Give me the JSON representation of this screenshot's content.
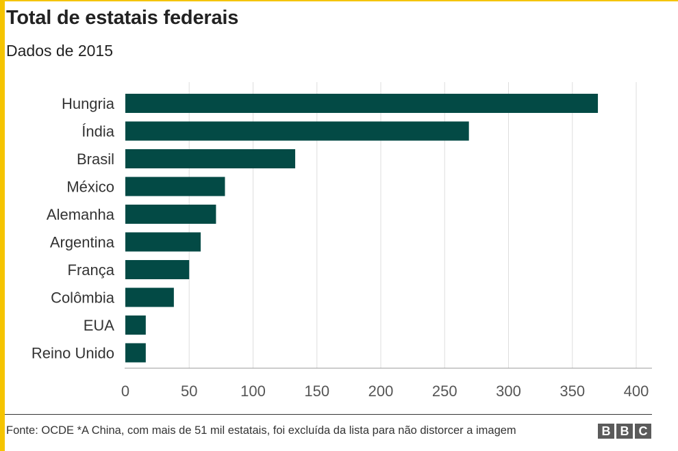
{
  "header": {
    "title": "Total de estatais federais",
    "subtitle": "Dados de 2015"
  },
  "chart_data": {
    "type": "bar",
    "orientation": "horizontal",
    "title": "Total de estatais federais",
    "subtitle": "Dados de 2015",
    "categories": [
      "Hungria",
      "Índia",
      "Brasil",
      "México",
      "Alemanha",
      "Argentina",
      "França",
      "Colômbia",
      "EUA",
      "Reino Unido"
    ],
    "values": [
      370,
      269,
      133,
      78,
      71,
      59,
      50,
      38,
      16,
      16
    ],
    "xlim": [
      0,
      400
    ],
    "xticks": [
      0,
      50,
      100,
      150,
      200,
      250,
      300,
      350,
      400
    ],
    "xlabel": "",
    "ylabel": "",
    "grid": "vertical",
    "bar_color": "#034a45"
  },
  "footer": {
    "note": "Fonte: OCDE *A China, com mais de 51 mil estatais, foi excluída da lista para não distorcer a imagem",
    "logo_letters": [
      "B",
      "B",
      "C"
    ]
  }
}
